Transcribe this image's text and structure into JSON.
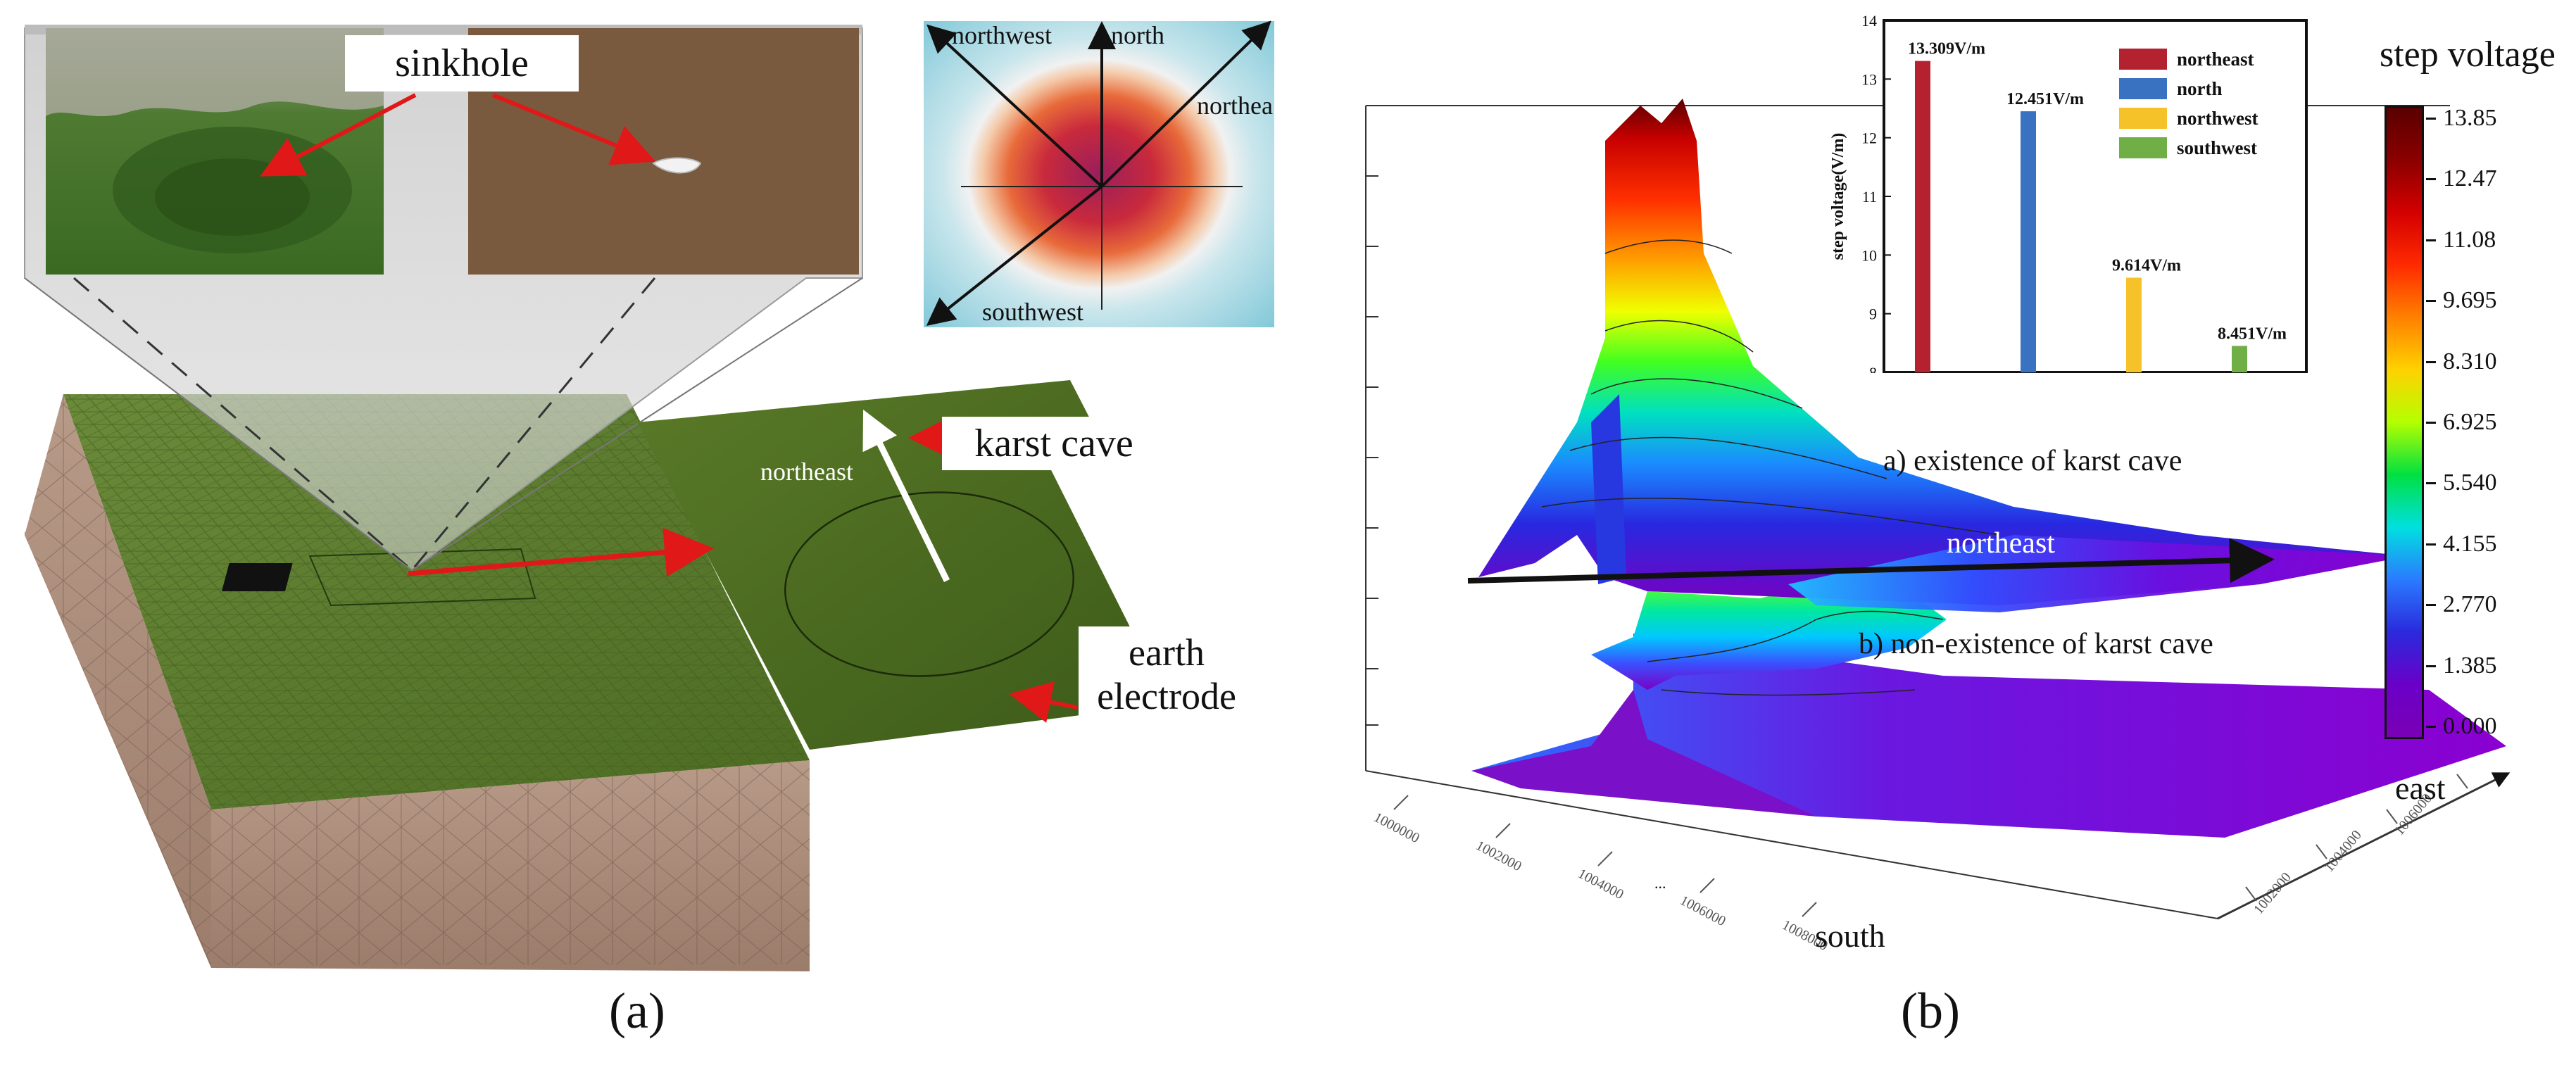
{
  "panel_a": {
    "caption": "(a)",
    "labels": {
      "sinkhole": "sinkhole",
      "karst_cave": "karst cave",
      "earth_electrode_line1": "earth",
      "earth_electrode_line2": "electrode",
      "northeast_on_cave": "northeast"
    },
    "compass": {
      "northwest": "northwest",
      "north": "north",
      "northeast": "northea",
      "southwest": "southwest"
    }
  },
  "panel_b": {
    "caption": "(b)",
    "surface_labels": {
      "with_cave": "a) existence of karst cave",
      "without_cave": "b) non-existence of karst cave",
      "direction": "northeast"
    },
    "axes": {
      "east": "east",
      "south": "south",
      "mid_tick": "..."
    },
    "colorbar": {
      "title": "step voltage",
      "ticks": [
        "13.85",
        "12.47",
        "11.08",
        "9.695",
        "8.310",
        "6.925",
        "5.540",
        "4.155",
        "2.770",
        "1.385",
        "0.000"
      ],
      "colors": [
        "#5a0000",
        "#8b0000",
        "#d40000",
        "#ff2a00",
        "#ff8000",
        "#ffd200",
        "#b4ff00",
        "#00e040",
        "#00e0e0",
        "#2a7bff",
        "#2a2adc",
        "#6a00c8",
        "#7a00b4"
      ]
    }
  },
  "chart_data": {
    "type": "bar",
    "categories": [
      "northeast",
      "north",
      "northwest",
      "southwest"
    ],
    "values": [
      13.309,
      12.451,
      9.614,
      8.451
    ],
    "data_labels": [
      "13.309V/m",
      "12.451V/m",
      "9.614V/m",
      "8.451V/m"
    ],
    "colors": [
      "#b5222f",
      "#3a72c2",
      "#f6c22a",
      "#6faf46"
    ],
    "ylabel": "step voltage(V/m)",
    "ylim": [
      8,
      14
    ],
    "yticks": [
      "8",
      "9",
      "10",
      "11",
      "12",
      "13",
      "14"
    ],
    "legend_position": "top-right",
    "legend": [
      "northeast",
      "north",
      "northwest",
      "southwest"
    ]
  }
}
